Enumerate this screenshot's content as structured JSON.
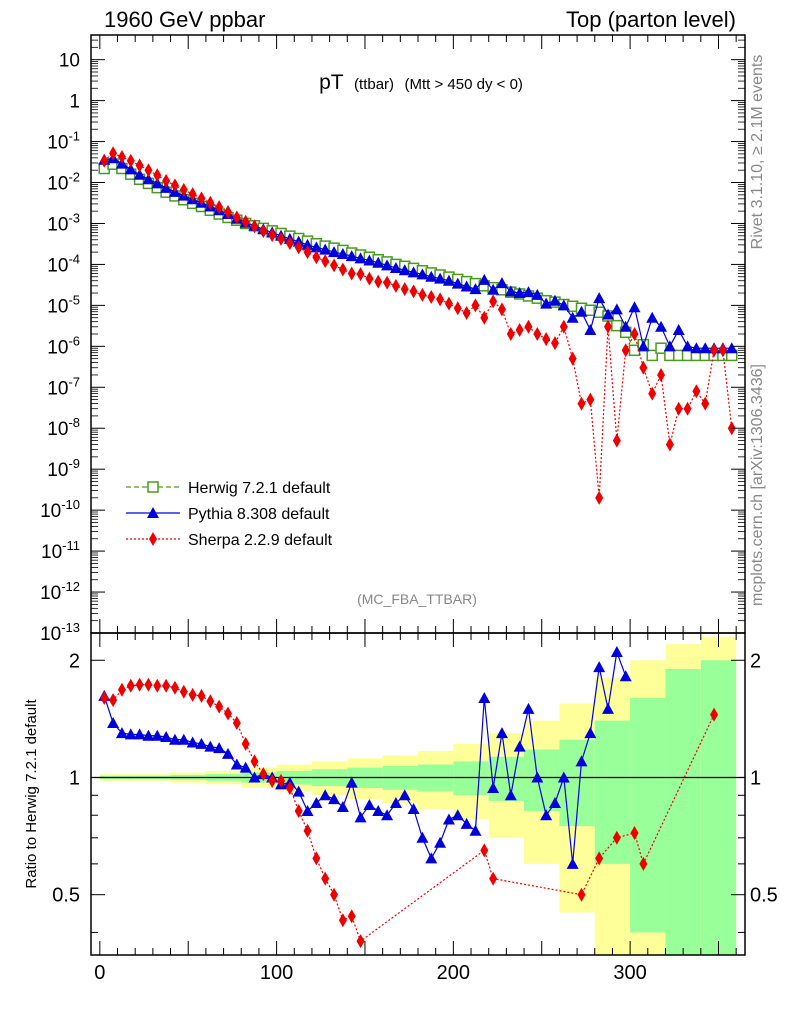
{
  "header": {
    "left": "1960 GeV ppbar",
    "right": "Top (parton level)"
  },
  "side_labels": {
    "rivet": "Rivet 3.1.10, ≥ 2.1M events",
    "mcplots": "mcplots.cern.ch [arXiv:1306.3436]"
  },
  "colors": {
    "herwig": "#4a9a1f",
    "pythia": "#0000dd",
    "sherpa": "#ee0000",
    "band_outer": "#ffff99",
    "band_inner": "#99ff99"
  },
  "chart_data": [
    {
      "type": "scatter",
      "panel": "main",
      "title": "pT",
      "title_sub": "(ttbar)",
      "title_cut": "(Mtt > 450 dy < 0)",
      "watermark": "(MC_FBA_TTBAR)",
      "yscale": "log",
      "xlim": [
        -5,
        365
      ],
      "ylim": [
        1e-13,
        40
      ],
      "ytick_labels": [
        "10",
        "1",
        "10^-1",
        "10^-2",
        "10^-3",
        "10^-4",
        "10^-5",
        "10^-6",
        "10^-7",
        "10^-8",
        "10^-9",
        "10^-10",
        "10^-11",
        "10^-12",
        "10^-13"
      ],
      "legend_position": "bottom-left",
      "series": [
        {
          "name": "Herwig 7.2.1 default",
          "x": [
            2.5,
            7.5,
            12.5,
            17.5,
            22.5,
            27.5,
            32.5,
            37.5,
            42.5,
            47.5,
            52.5,
            57.5,
            62.5,
            67.5,
            72.5,
            77.5,
            82.5,
            87.5,
            92.5,
            97.5,
            102.5,
            107.5,
            112.5,
            117.5,
            122.5,
            127.5,
            132.5,
            137.5,
            142.5,
            147.5,
            152.5,
            157.5,
            162.5,
            167.5,
            172.5,
            177.5,
            182.5,
            187.5,
            192.5,
            197.5,
            202.5,
            207.5,
            212.5,
            217.5,
            222.5,
            227.5,
            232.5,
            237.5,
            242.5,
            247.5,
            252.5,
            257.5,
            262.5,
            267.5,
            272.5,
            277.5,
            282.5,
            287.5,
            292.5,
            297.5,
            302.5,
            307.5,
            312.5,
            317.5,
            322.5,
            327.5,
            332.5,
            337.5,
            342.5,
            347.5,
            352.5,
            357.5
          ],
          "y": [
            0.022,
            0.028,
            0.022,
            0.016,
            0.012,
            0.0095,
            0.0075,
            0.0058,
            0.0047,
            0.0038,
            0.0031,
            0.0026,
            0.0021,
            0.0017,
            0.0014,
            0.0012,
            0.001,
            0.00088,
            0.00076,
            0.00066,
            0.00057,
            0.00049,
            0.00043,
            0.00037,
            0.00032,
            0.00028,
            0.00025,
            0.00022,
            0.00019,
            0.00017,
            0.00015,
            0.00013,
            0.000115,
            0.0001,
            9e-05,
            8e-05,
            7e-05,
            6.2e-05,
            5.5e-05,
            4.9e-05,
            4.3e-05,
            3.8e-05,
            3.4e-05,
            3e-05,
            2.7e-05,
            2.4e-05,
            2.1e-05,
            1.9e-05,
            1.7e-05,
            1.5e-05,
            1.3e-05,
            1.2e-05,
            1.05e-05,
            9.5e-06,
            8.5e-06,
            7.6e-06,
            6.8e-06,
            5.5e-06,
            3.2e-06,
            2.2e-06,
            8e-07,
            1.1e-06,
            6e-07,
            9e-07,
            6e-07,
            6e-07,
            6e-07,
            6e-07,
            6e-07,
            6e-07,
            6e-07,
            6e-07
          ]
        },
        {
          "name": "Pythia 8.308 default",
          "x": [
            2.5,
            7.5,
            12.5,
            17.5,
            22.5,
            27.5,
            32.5,
            37.5,
            42.5,
            47.5,
            52.5,
            57.5,
            62.5,
            67.5,
            72.5,
            77.5,
            82.5,
            87.5,
            92.5,
            97.5,
            102.5,
            107.5,
            112.5,
            117.5,
            122.5,
            127.5,
            132.5,
            137.5,
            142.5,
            147.5,
            152.5,
            157.5,
            162.5,
            167.5,
            172.5,
            177.5,
            182.5,
            187.5,
            192.5,
            197.5,
            202.5,
            207.5,
            212.5,
            217.5,
            222.5,
            227.5,
            232.5,
            237.5,
            242.5,
            247.5,
            252.5,
            257.5,
            262.5,
            267.5,
            272.5,
            277.5,
            282.5,
            287.5,
            292.5,
            297.5,
            302.5,
            307.5,
            312.5,
            317.5,
            322.5,
            327.5,
            332.5,
            337.5,
            342.5,
            347.5,
            352.5,
            357.5
          ],
          "y": [
            0.036,
            0.039,
            0.029,
            0.021,
            0.0155,
            0.012,
            0.0095,
            0.0074,
            0.0059,
            0.0048,
            0.0039,
            0.0032,
            0.0026,
            0.0021,
            0.0017,
            0.0013,
            0.00105,
            0.00088,
            0.00072,
            0.0006,
            0.0005,
            0.00042,
            0.00036,
            0.0003,
            0.00026,
            0.00023,
            0.0002,
            0.00018,
            0.00016,
            0.00014,
            0.000125,
            0.00011,
            9.5e-05,
            8.2e-05,
            7.2e-05,
            6.4e-05,
            5.7e-05,
            5e-05,
            4.5e-05,
            4e-05,
            3.4e-05,
            2.9e-05,
            2.5e-05,
            4.2e-05,
            2.4e-05,
            3.5e-05,
            2.2e-05,
            2e-05,
            2.1e-05,
            1.8e-05,
            1.1e-05,
            1.3e-05,
            1e-05,
            5e-06,
            7e-06,
            2.5e-06,
            1.5e-05,
            6e-06,
            8e-06,
            3e-06,
            9e-06,
            1e-06,
            5e-06,
            3e-06,
            1e-06,
            2.5e-06,
            1e-06,
            9e-07,
            9e-07,
            9e-07,
            9e-07,
            9e-07
          ]
        },
        {
          "name": "Sherpa 2.2.9 default",
          "x": [
            2.5,
            7.5,
            12.5,
            17.5,
            22.5,
            27.5,
            32.5,
            37.5,
            42.5,
            47.5,
            52.5,
            57.5,
            62.5,
            67.5,
            72.5,
            77.5,
            82.5,
            87.5,
            92.5,
            97.5,
            102.5,
            107.5,
            112.5,
            117.5,
            122.5,
            127.5,
            132.5,
            137.5,
            142.5,
            147.5,
            152.5,
            157.5,
            162.5,
            167.5,
            172.5,
            177.5,
            182.5,
            187.5,
            192.5,
            197.5,
            202.5,
            207.5,
            212.5,
            217.5,
            222.5,
            227.5,
            232.5,
            237.5,
            242.5,
            247.5,
            252.5,
            257.5,
            262.5,
            267.5,
            272.5,
            277.5,
            282.5,
            287.5,
            292.5,
            297.5,
            302.5,
            307.5,
            312.5,
            317.5,
            322.5,
            327.5,
            332.5,
            337.5,
            342.5,
            347.5,
            352.5,
            357.5
          ],
          "y": [
            0.034,
            0.052,
            0.042,
            0.034,
            0.026,
            0.02,
            0.015,
            0.011,
            0.0085,
            0.0066,
            0.0052,
            0.0041,
            0.0032,
            0.0025,
            0.0019,
            0.0014,
            0.0011,
            0.00085,
            0.00065,
            0.00052,
            0.00042,
            0.00033,
            0.00026,
            0.0002,
            0.00015,
            0.00012,
            9.5e-05,
            7.5e-05,
            6e-05,
            5.8e-05,
            4.5e-05,
            3.8e-05,
            3.6e-05,
            3e-05,
            2.5e-05,
            2.2e-05,
            1.8e-05,
            1.6e-05,
            1.4e-05,
            1.1e-05,
            8.5e-06,
            6.5e-06,
            1e-05,
            5e-06,
            1.25e-05,
            8e-06,
            2e-06,
            2.5e-06,
            3e-06,
            2e-06,
            1.5e-06,
            1.2e-06,
            3e-06,
            5e-07,
            4e-08,
            5e-08,
            2e-10,
            3e-06,
            5e-09,
            8e-07,
            2e-06,
            3e-07,
            7e-08,
            2e-07,
            4e-09,
            3e-08,
            3e-08,
            8e-08,
            4e-08,
            8e-07,
            8e-07,
            1e-08
          ]
        }
      ]
    },
    {
      "type": "scatter",
      "panel": "ratio",
      "ylabel": "Ratio to Herwig 7.2.1 default",
      "xlim": [
        -5,
        365
      ],
      "ylim": [
        0.35,
        2.35
      ],
      "xticks": [
        0,
        100,
        200,
        300
      ],
      "yticks": [
        0.5,
        1,
        2
      ],
      "reference_line": 1,
      "uncertainty_bands": {
        "x_edges": [
          0,
          20,
          40,
          60,
          80,
          100,
          120,
          140,
          160,
          180,
          200,
          220,
          240,
          260,
          280,
          300,
          320,
          340,
          360
        ],
        "inner": [
          0.01,
          0.01,
          0.015,
          0.02,
          0.03,
          0.04,
          0.05,
          0.06,
          0.07,
          0.08,
          0.1,
          0.13,
          0.18,
          0.25,
          0.4,
          0.6,
          0.9,
          1.0
        ],
        "outer": [
          0.02,
          0.02,
          0.03,
          0.04,
          0.06,
          0.08,
          0.1,
          0.12,
          0.14,
          0.17,
          0.22,
          0.3,
          0.4,
          0.55,
          0.8,
          1.0,
          1.2,
          1.3
        ]
      },
      "series": [
        {
          "name": "Pythia 8.308 default",
          "x": [
            2.5,
            7.5,
            12.5,
            17.5,
            22.5,
            27.5,
            32.5,
            37.5,
            42.5,
            47.5,
            52.5,
            57.5,
            62.5,
            67.5,
            72.5,
            77.5,
            82.5,
            87.5,
            92.5,
            97.5,
            102.5,
            107.5,
            112.5,
            117.5,
            122.5,
            127.5,
            132.5,
            137.5,
            142.5,
            147.5,
            152.5,
            157.5,
            162.5,
            167.5,
            172.5,
            177.5,
            182.5,
            187.5,
            192.5,
            197.5,
            202.5,
            207.5,
            212.5,
            217.5,
            222.5,
            227.5,
            232.5,
            237.5,
            242.5,
            247.5,
            252.5,
            257.5,
            262.5,
            267.5,
            272.5,
            277.5,
            282.5,
            287.5,
            292.5,
            297.5
          ],
          "y": [
            1.62,
            1.38,
            1.3,
            1.29,
            1.29,
            1.28,
            1.28,
            1.27,
            1.25,
            1.25,
            1.23,
            1.22,
            1.2,
            1.19,
            1.15,
            1.08,
            1.06,
            1.0,
            1.02,
            1.0,
            0.96,
            0.97,
            0.92,
            0.82,
            0.86,
            0.9,
            0.88,
            0.84,
            0.97,
            0.79,
            0.85,
            0.82,
            0.8,
            0.86,
            0.9,
            0.83,
            0.7,
            0.62,
            0.68,
            0.78,
            0.8,
            0.76,
            0.73,
            1.6,
            0.94,
            1.3,
            0.9,
            1.2,
            1.5,
            1.0,
            0.8,
            0.86,
            1.0,
            0.6,
            1.1,
            1.3,
            1.92,
            1.5,
            2.1,
            1.82
          ]
        },
        {
          "name": "Sherpa 2.2.9 default",
          "x": [
            2.5,
            7.5,
            12.5,
            17.5,
            22.5,
            27.5,
            32.5,
            37.5,
            42.5,
            47.5,
            52.5,
            57.5,
            62.5,
            67.5,
            72.5,
            77.5,
            82.5,
            87.5,
            92.5,
            97.5,
            102.5,
            107.5,
            112.5,
            117.5,
            122.5,
            127.5,
            132.5,
            137.5,
            142.5,
            147.5,
            217.5,
            222.5,
            272.5,
            282.5,
            292.5,
            302.5,
            307.5,
            347.5
          ],
          "y": [
            1.6,
            1.58,
            1.68,
            1.72,
            1.73,
            1.73,
            1.72,
            1.72,
            1.7,
            1.66,
            1.63,
            1.62,
            1.57,
            1.52,
            1.46,
            1.38,
            1.22,
            1.1,
            1.02,
            0.98,
            0.98,
            0.94,
            0.82,
            0.73,
            0.62,
            0.55,
            0.5,
            0.43,
            0.44,
            0.38,
            0.65,
            0.55,
            0.5,
            0.62,
            0.7,
            0.72,
            0.6,
            1.45
          ]
        }
      ]
    }
  ]
}
